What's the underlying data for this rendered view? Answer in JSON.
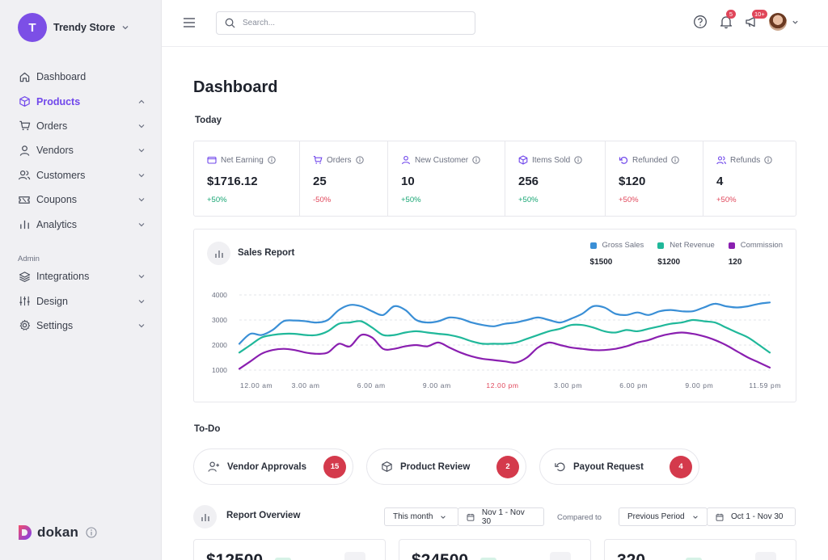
{
  "store": {
    "initial": "T",
    "name": "Trendy Store"
  },
  "sidebar": {
    "items": [
      {
        "label": "Dashboard"
      },
      {
        "label": "Products"
      },
      {
        "label": "Orders"
      },
      {
        "label": "Vendors"
      },
      {
        "label": "Customers"
      },
      {
        "label": "Coupons"
      },
      {
        "label": "Analytics"
      }
    ],
    "admin_label": "Admin",
    "admin_items": [
      {
        "label": "Integrations"
      },
      {
        "label": "Design"
      },
      {
        "label": "Settings"
      }
    ],
    "brand": "dokan"
  },
  "topbar": {
    "search_placeholder": "Search...",
    "notifications_badge": "5",
    "announcements_badge": "10+"
  },
  "page": {
    "title": "Dashboard",
    "today_label": "Today"
  },
  "stats": [
    {
      "label": "Net Earning",
      "value": "$1716.12",
      "change": "+50%",
      "trend": "up"
    },
    {
      "label": "Orders",
      "value": "25",
      "change": "-50%",
      "trend": "down"
    },
    {
      "label": "New Customer",
      "value": "10",
      "change": "+50%",
      "trend": "up"
    },
    {
      "label": "Items Sold",
      "value": "256",
      "change": "+50%",
      "trend": "up"
    },
    {
      "label": "Refunded",
      "value": "$120",
      "change": "+50%",
      "trend": "down"
    },
    {
      "label": "Refunds",
      "value": "4",
      "change": "+50%",
      "trend": "down"
    }
  ],
  "sales_report": {
    "title": "Sales Report",
    "legend": [
      {
        "name": "Gross Sales",
        "value": "$1500",
        "color": "#3a8fd6"
      },
      {
        "name": "Net Revenue",
        "value": "$1200",
        "color": "#20b89a"
      },
      {
        "name": "Commission",
        "value": "120",
        "color": "#8a1fb0"
      }
    ]
  },
  "chart_data": {
    "type": "line",
    "title": "Sales Report",
    "x_tick_labels": [
      "12.00 am",
      "3.00 am",
      "6.00 am",
      "9.00 am",
      "12.00 pm",
      "3.00 pm",
      "6.00 pm",
      "9.00 pm",
      "11.59 pm"
    ],
    "highlight_tick": "12.00 pm",
    "y_ticks": [
      1000,
      2000,
      3000,
      4000
    ],
    "ylim": [
      1000,
      4000
    ],
    "grid": "horizontal dashed",
    "legend_position": "top-right",
    "x": [
      0,
      0.5,
      1,
      1.5,
      2,
      2.5,
      3,
      3.5,
      4,
      4.5,
      5,
      5.5,
      6,
      6.5,
      7,
      7.5,
      8,
      8.5,
      9,
      9.5,
      10,
      10.5,
      11,
      11.5,
      12,
      12.5,
      13,
      13.5,
      14,
      14.5,
      15,
      15.5,
      16,
      16.5,
      17,
      17.5,
      18,
      18.5,
      19,
      19.5,
      20,
      20.5,
      21,
      21.5,
      22,
      22.5,
      23,
      23.5,
      23.98
    ],
    "series": [
      {
        "name": "Gross Sales",
        "color": "#3a8fd6",
        "values": [
          2050,
          2450,
          2400,
          2600,
          2950,
          2980,
          2950,
          2900,
          3000,
          3400,
          3600,
          3550,
          3350,
          3200,
          3550,
          3400,
          3000,
          2900,
          2950,
          3100,
          3050,
          2900,
          2800,
          2750,
          2850,
          2900,
          3000,
          3100,
          3000,
          2900,
          3050,
          3250,
          3550,
          3500,
          3250,
          3200,
          3300,
          3200,
          3350,
          3400,
          3350,
          3350,
          3500,
          3650,
          3550,
          3500,
          3550,
          3650,
          3700
        ]
      },
      {
        "name": "Net Revenue",
        "color": "#20b89a",
        "values": [
          1700,
          2000,
          2300,
          2400,
          2450,
          2450,
          2400,
          2400,
          2550,
          2850,
          2900,
          2950,
          2700,
          2400,
          2400,
          2500,
          2550,
          2500,
          2450,
          2400,
          2300,
          2150,
          2050,
          2050,
          2050,
          2100,
          2250,
          2400,
          2550,
          2650,
          2800,
          2800,
          2700,
          2550,
          2500,
          2600,
          2550,
          2650,
          2750,
          2850,
          2900,
          3000,
          2950,
          2900,
          2700,
          2500,
          2300,
          2000,
          1700
        ]
      },
      {
        "name": "Commission",
        "color": "#8a1fb0",
        "values": [
          1050,
          1350,
          1650,
          1800,
          1850,
          1800,
          1700,
          1650,
          1700,
          2050,
          1950,
          2400,
          2300,
          1850,
          1850,
          1950,
          2000,
          1950,
          2100,
          1900,
          1700,
          1550,
          1450,
          1400,
          1350,
          1300,
          1500,
          1900,
          2100,
          2000,
          1900,
          1850,
          1800,
          1800,
          1850,
          1950,
          2100,
          2200,
          2350,
          2450,
          2500,
          2450,
          2350,
          2200,
          2000,
          1750,
          1500,
          1300,
          1100
        ]
      }
    ]
  },
  "todo": {
    "title": "To-Do",
    "items": [
      {
        "label": "Vendor Approvals",
        "count": "15"
      },
      {
        "label": "Product Review",
        "count": "2"
      },
      {
        "label": "Payout Request",
        "count": "4"
      }
    ]
  },
  "report_overview": {
    "title": "Report Overview",
    "period_select": "This month",
    "period_range": "Nov 1 - Nov 30",
    "compared_label": "Compared to",
    "compare_select": "Previous Period",
    "compare_range": "Oct 1 - Nov 30"
  },
  "overview_cards": [
    {
      "value": "$12500"
    },
    {
      "value": "$24500"
    },
    {
      "value": "320"
    }
  ]
}
